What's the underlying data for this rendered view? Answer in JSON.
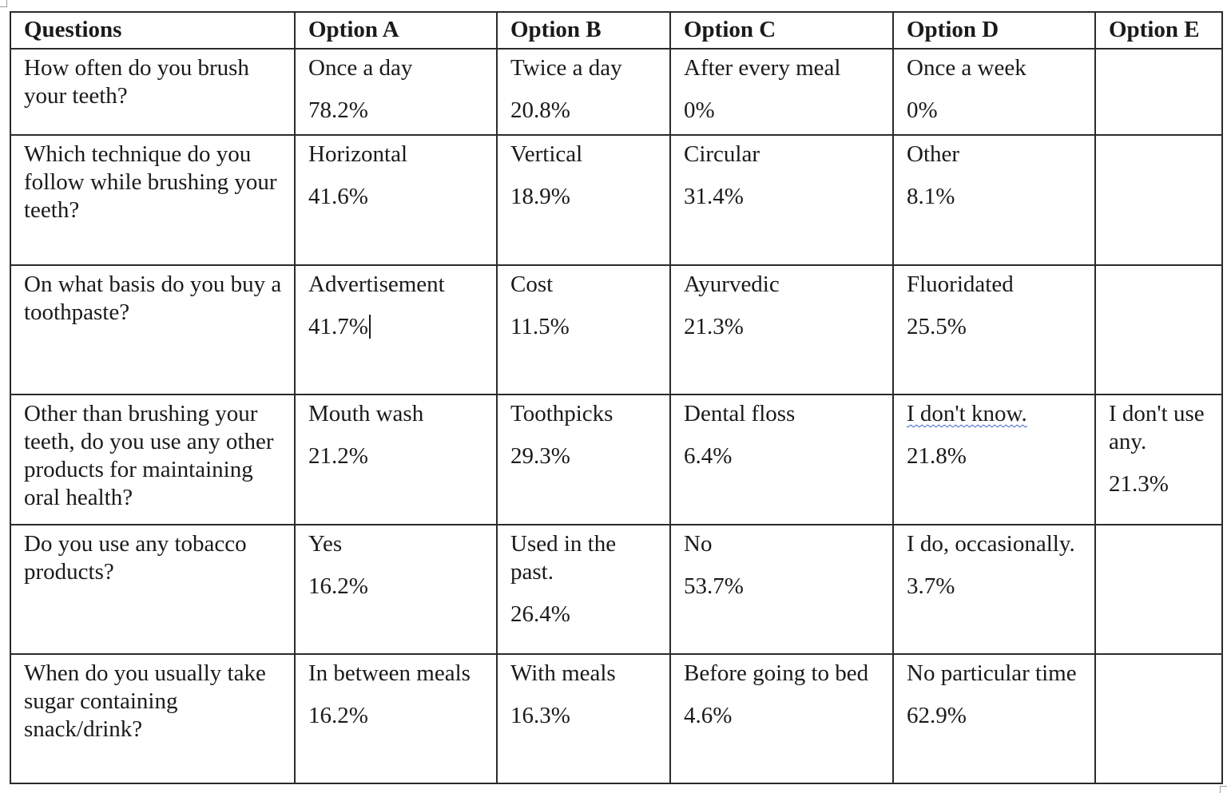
{
  "table": {
    "headers": [
      "Questions",
      "Option A",
      "Option B",
      "Option C",
      "Option D",
      "Option E"
    ],
    "rows": [
      {
        "question": "How often do you brush your teeth?",
        "options": [
          {
            "label": "Once a day",
            "pct": "78.2%"
          },
          {
            "label": "Twice a day",
            "pct": "20.8%"
          },
          {
            "label": "After every meal",
            "pct": "0%"
          },
          {
            "label": "Once a week",
            "pct": "0%"
          },
          {
            "label": "",
            "pct": ""
          }
        ]
      },
      {
        "question": "Which technique do you follow while brushing your teeth?",
        "options": [
          {
            "label": "Horizontal",
            "pct": "41.6%"
          },
          {
            "label": "Vertical",
            "pct": "18.9%"
          },
          {
            "label": "Circular",
            "pct": "31.4%"
          },
          {
            "label": "Other",
            "pct": "8.1%"
          },
          {
            "label": "",
            "pct": ""
          }
        ]
      },
      {
        "question": "On what basis do you buy a toothpaste?",
        "options": [
          {
            "label": "Advertisement",
            "pct": "41.7%"
          },
          {
            "label": "Cost",
            "pct": "11.5%"
          },
          {
            "label": "Ayurvedic",
            "pct": "21.3%"
          },
          {
            "label": "Fluoridated",
            "pct": "25.5%"
          },
          {
            "label": "",
            "pct": ""
          }
        ]
      },
      {
        "question": "Other than brushing your teeth, do you use any other products for maintaining oral health?",
        "options": [
          {
            "label": "Mouth wash",
            "pct": "21.2%"
          },
          {
            "label": "Toothpicks",
            "pct": "29.3%"
          },
          {
            "label": "Dental floss",
            "pct": "6.4%"
          },
          {
            "label": "I don't know.",
            "pct": "21.8%"
          },
          {
            "label": "I don't use any.",
            "pct": "21.3%"
          }
        ]
      },
      {
        "question": "Do you use any tobacco products?",
        "options": [
          {
            "label": "Yes",
            "pct": "16.2%"
          },
          {
            "label": "Used in the past.",
            "pct": "26.4%"
          },
          {
            "label": "No",
            "pct": "53.7%"
          },
          {
            "label": "I do, occasionally.",
            "pct": "3.7%"
          },
          {
            "label": "",
            "pct": ""
          }
        ]
      },
      {
        "question": "When do you usually take sugar containing snack/drink?",
        "options": [
          {
            "label": "In between meals",
            "pct": "16.2%"
          },
          {
            "label": "With meals",
            "pct": "16.3%"
          },
          {
            "label": "Before going to bed",
            "pct": "4.6%"
          },
          {
            "label": "No particular time",
            "pct": "62.9%"
          },
          {
            "label": "",
            "pct": ""
          }
        ]
      }
    ]
  }
}
